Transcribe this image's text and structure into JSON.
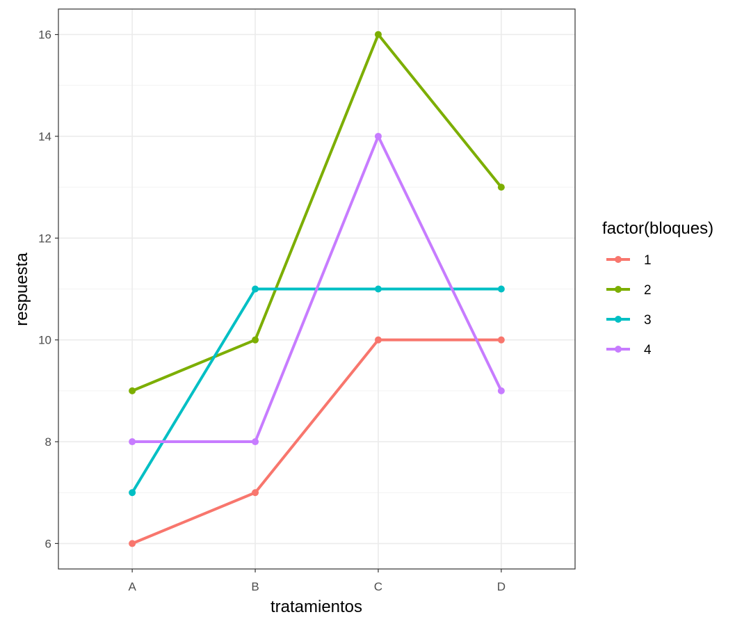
{
  "chart_data": {
    "type": "line",
    "xlabel": "tratamientos",
    "ylabel": "respuesta",
    "categories": [
      "A",
      "B",
      "C",
      "D"
    ],
    "ylim": [
      5.5,
      16.5
    ],
    "yticks": [
      6,
      8,
      10,
      12,
      14,
      16
    ],
    "grid": true,
    "legend": {
      "title": "factor(bloques)",
      "placement": "right"
    },
    "series": [
      {
        "name": "1",
        "color": "#F8766D",
        "values": [
          6,
          7,
          10,
          10
        ]
      },
      {
        "name": "2",
        "color": "#7CAE00",
        "values": [
          9,
          10,
          16,
          13
        ]
      },
      {
        "name": "3",
        "color": "#00BFC4",
        "values": [
          7,
          11,
          11,
          11
        ]
      },
      {
        "name": "4",
        "color": "#C77CFF",
        "values": [
          8,
          8,
          14,
          9
        ]
      }
    ]
  }
}
